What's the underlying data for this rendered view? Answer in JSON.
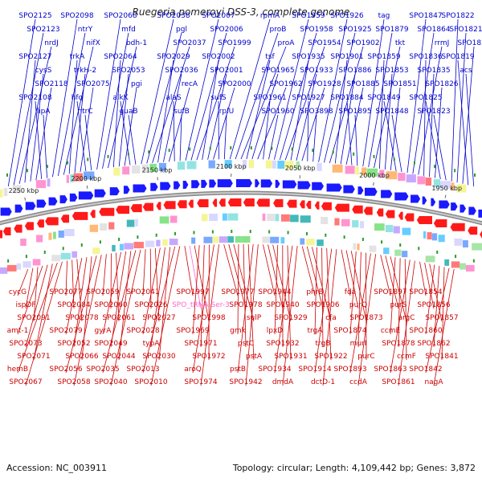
{
  "title": "Ruegeria pomeroyi DSS-3, complete genome",
  "footer": {
    "accession": "Accession: NC_003911",
    "topology": "Topology: circular; Length: 4,109,442 bp; Genes: 3,872"
  },
  "colors": {
    "forward_label": "#0000cc",
    "reverse_label": "#cc0000",
    "trna_label": "#ff66cc",
    "backbone": "#888888",
    "forward_arrow": "#1a1aff",
    "reverse_arrow": "#ff1a1a",
    "tick": "#2a9a2a"
  },
  "ticks": [
    {
      "label": "2250 kbp"
    },
    {
      "label": "2200 kbp"
    },
    {
      "label": "2150 kbp"
    },
    {
      "label": "2100 kbp"
    },
    {
      "label": "2050 kbp"
    },
    {
      "label": "2000 kbp"
    },
    {
      "label": "1950 kbp"
    }
  ],
  "forward_labels": [
    "SPO2125",
    "SPO2123",
    "nrdJ",
    "SPO2127",
    "cysS",
    "SPO2118",
    "SPO2108",
    "lipA",
    "SPO2098",
    "ntrY",
    "nifX",
    "trkA",
    "trkH-2",
    "SPO2075",
    "hfq",
    "ntrC",
    "SPO2068",
    "mfd",
    "bdh-1",
    "SPO2064",
    "SPO2053",
    "pgi",
    "alkK",
    "guaB",
    "SPO2038",
    "pgl",
    "SPO2037",
    "SPO2029",
    "SPO2036",
    "recA",
    "alaS",
    "sufB",
    "SPO2007",
    "SPO2006",
    "SPO1999",
    "SPO2002",
    "SPO2001",
    "SPO2000",
    "sufS",
    "rplU",
    "rpmA",
    "proB",
    "proA",
    "tsf",
    "SPO1965",
    "SPO1962",
    "SPO1961",
    "SPO1960",
    "SPO1959",
    "SPO1958",
    "SPO1954",
    "SPO1935",
    "SPO1933",
    "SPO1928",
    "SPO1927",
    "SPO3898",
    "SPO1926",
    "SPO1925",
    "SPO1902",
    "SPO1901",
    "SPO1886",
    "SPO1885",
    "SPO1884",
    "SPO1895",
    "tag",
    "SPO1879",
    "tkt",
    "SPO1859",
    "SPO1853",
    "SPO1851",
    "SPO1849",
    "SPO1848",
    "SPO1847",
    "SPO1864",
    "rrmJ",
    "SPO1836",
    "SPO1835",
    "SPO1826",
    "SPO1825",
    "SPO1823",
    "SPO1822",
    "SPO1821",
    "SPO1820",
    "SPO1819",
    "acs"
  ],
  "reverse_labels": [
    "cycG",
    "ispDF",
    "SPO2091",
    "amt-1",
    "SPO2073",
    "SPO2071",
    "hemB",
    "SPO2067",
    "SPO2077",
    "SPO2084",
    "SPO2078",
    "SPO2079",
    "SPO2052",
    "SPO2066",
    "SPO2056",
    "SPO2058",
    "SPO2059",
    "SPO2060",
    "SPO2061",
    "gyrA",
    "SPO2049",
    "SPO2044",
    "SPO2035",
    "SPO2040",
    "SPO2041",
    "SPO2026",
    "SPO2027",
    "SPO2028",
    "typA",
    "SPO2030",
    "SPO2013",
    "SPO2010",
    "SPO1997",
    "SPO_tRNA-Ser-3",
    "SPO1998",
    "SPO1969",
    "SPO1971",
    "SPO1972",
    "aroQ",
    "SPO1974",
    "SPO1977",
    "SPO1978",
    "sulP",
    "gmk",
    "pstC",
    "pstA",
    "pstB",
    "SPO1942",
    "SPO1944",
    "SPO1940",
    "SPO1929",
    "lpxD",
    "SPO1932",
    "SPO1931",
    "SPO1934",
    "dmdA",
    "phrB",
    "SPO1906",
    "cfa",
    "trgA",
    "trgB",
    "SPO1922",
    "SPO1914",
    "dctD-1",
    "fda",
    "purQ",
    "SPO1873",
    "SPO1874",
    "murI",
    "purC",
    "SPO1893",
    "ccdA",
    "SPO1897",
    "purS",
    "argC",
    "ccmE",
    "SPO1878",
    "ccmF",
    "SPO1863",
    "SPO1861",
    "SPO1854",
    "SPO1856",
    "SPO1857",
    "SPO1860",
    "SPO1862",
    "SPO1841",
    "SPO1842",
    "nagA"
  ]
}
